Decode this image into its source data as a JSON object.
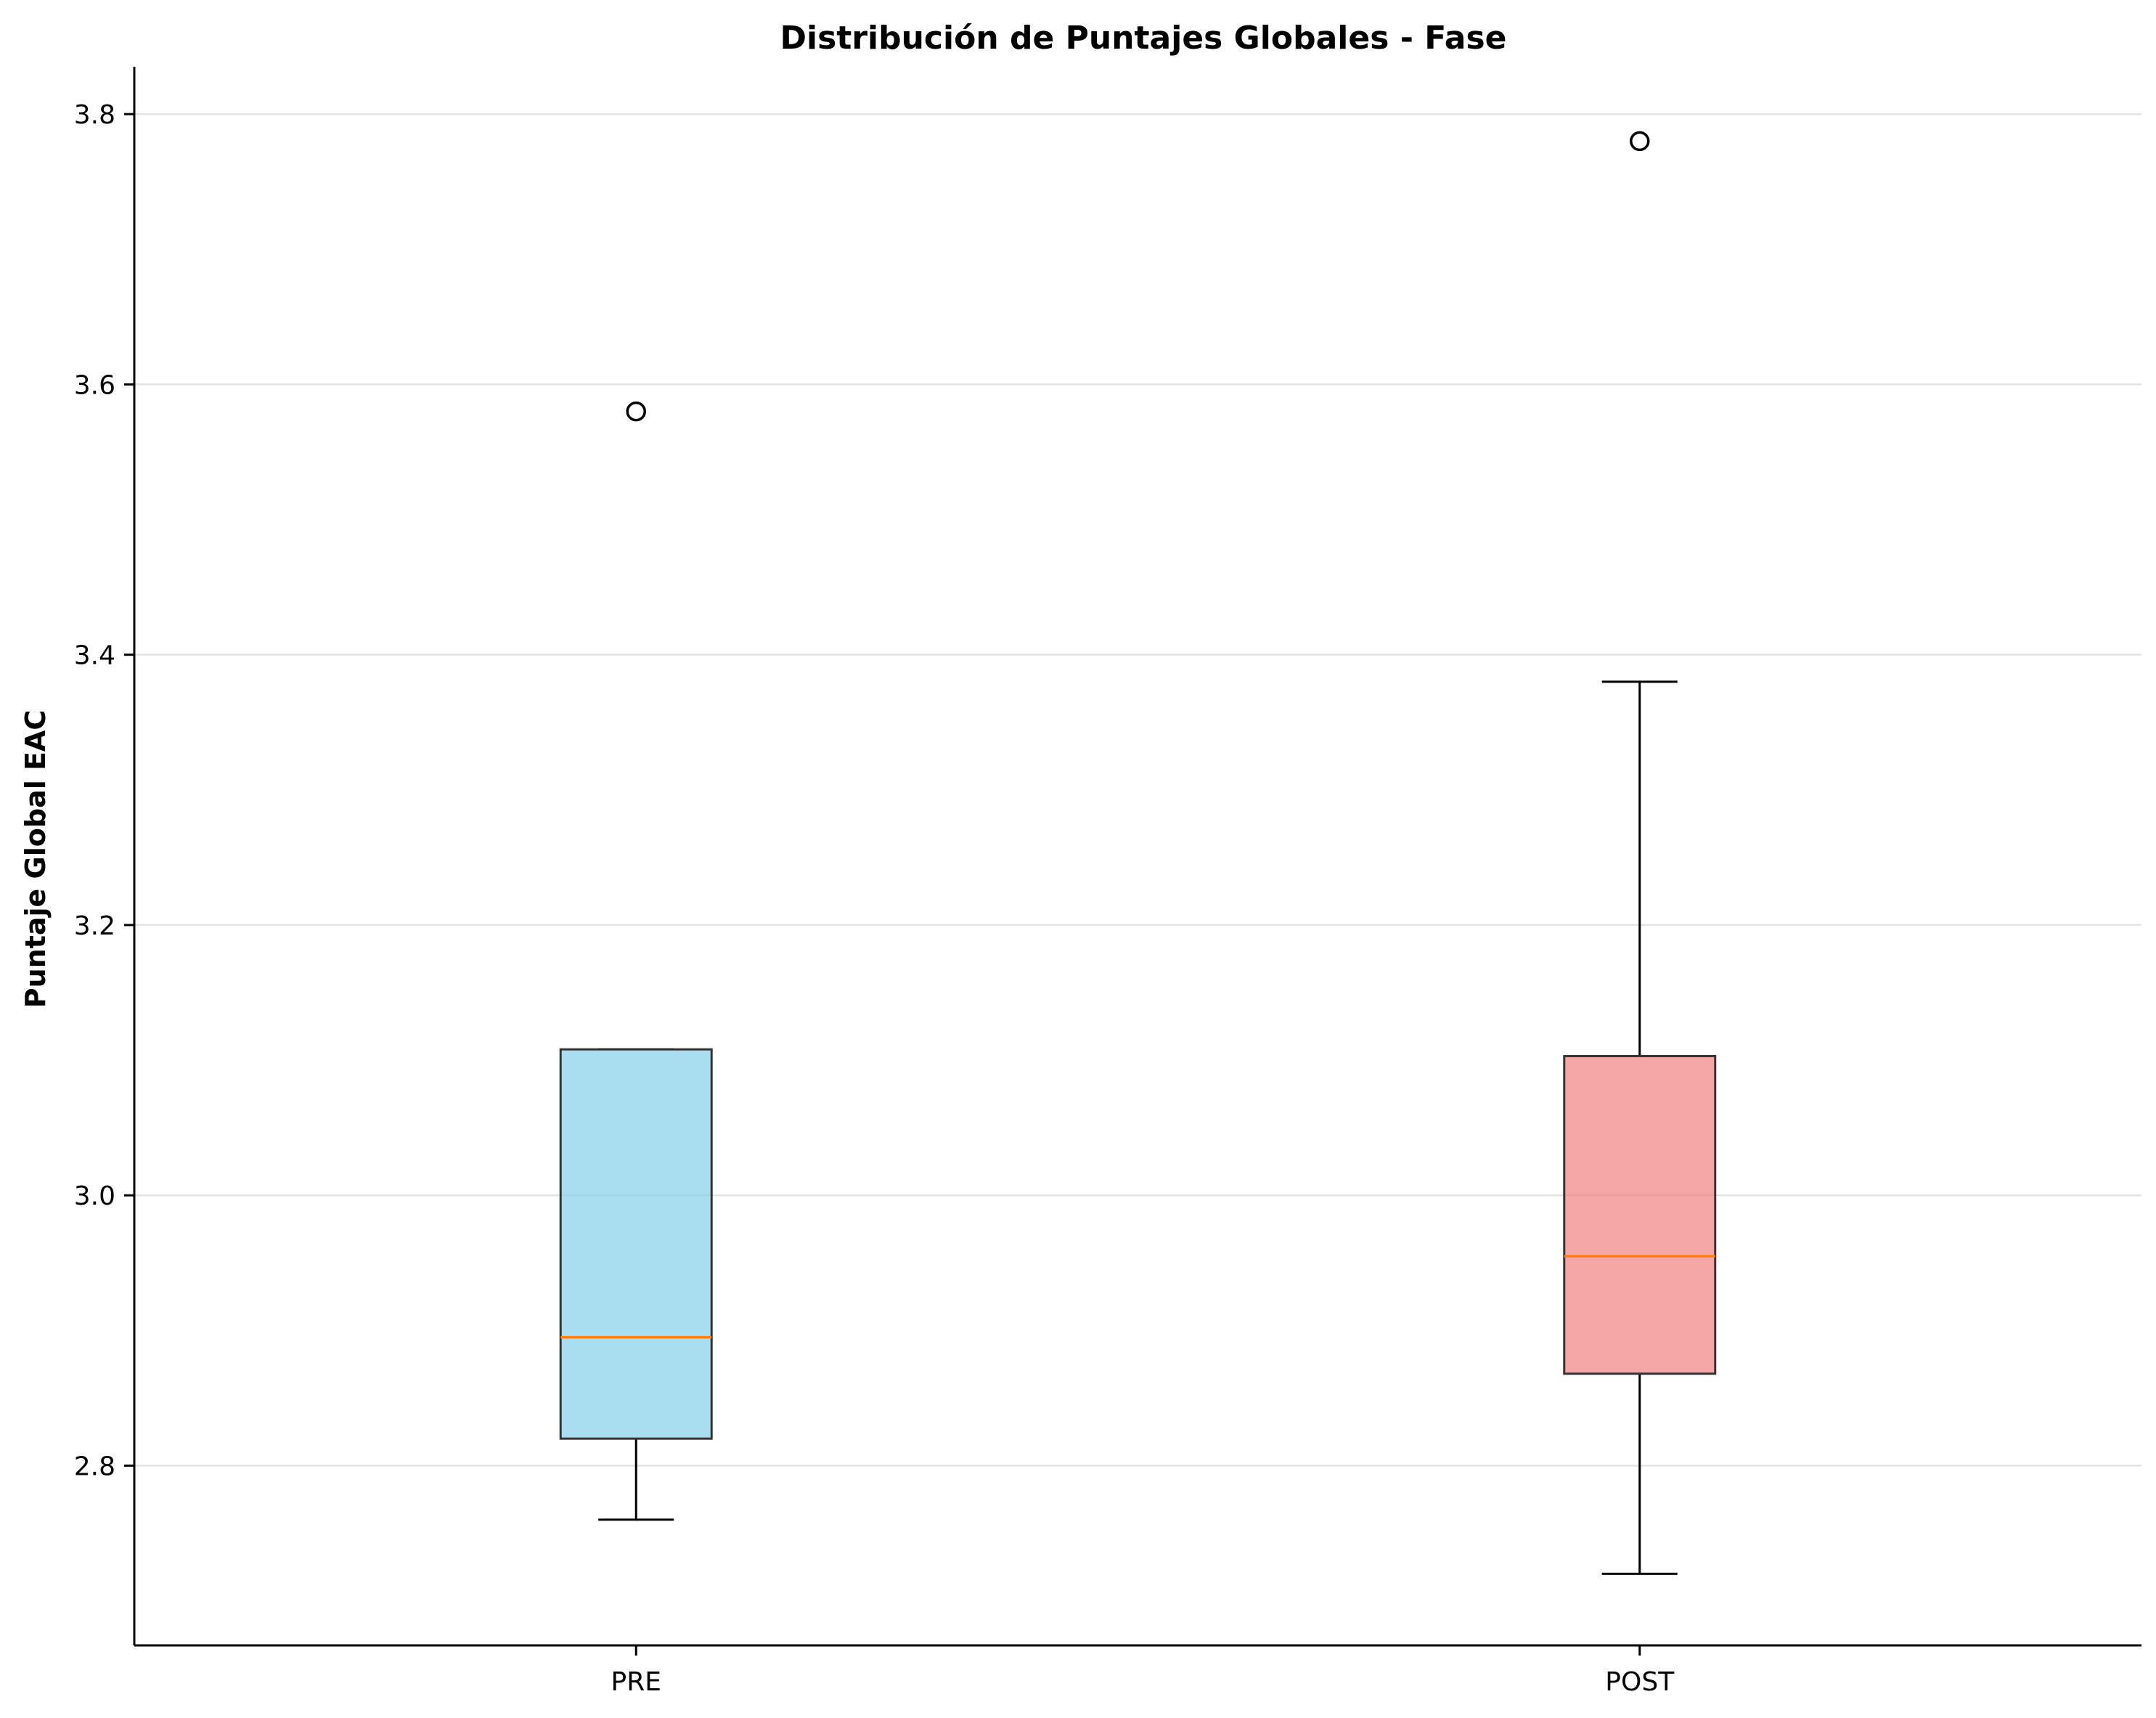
{
  "chart_data": {
    "type": "box",
    "title": "Distribución de Puntajes Globales - Fase",
    "xlabel": "",
    "ylabel": "Puntaje Global EAC",
    "ylim": [
      2.667,
      3.835
    ],
    "yticks": [
      2.8,
      3.0,
      3.2,
      3.4,
      3.6,
      3.8
    ],
    "ytick_labels": [
      "2.8",
      "3.0",
      "3.2",
      "3.4",
      "3.6",
      "3.8"
    ],
    "grid": "y",
    "categories": [
      "PRE",
      "POST"
    ],
    "boxes": [
      {
        "category": "PRE",
        "whisker_low": 2.76,
        "q1": 2.82,
        "median": 2.895,
        "q3": 3.108,
        "whisker_high": 3.108,
        "outliers": [
          3.58
        ],
        "color": "#87CEEB"
      },
      {
        "category": "POST",
        "whisker_low": 2.72,
        "q1": 2.868,
        "median": 2.955,
        "q3": 3.103,
        "whisker_high": 3.38,
        "outliers": [
          3.78
        ],
        "color": "#F08080"
      }
    ],
    "median_color": "#FF7F0E"
  }
}
